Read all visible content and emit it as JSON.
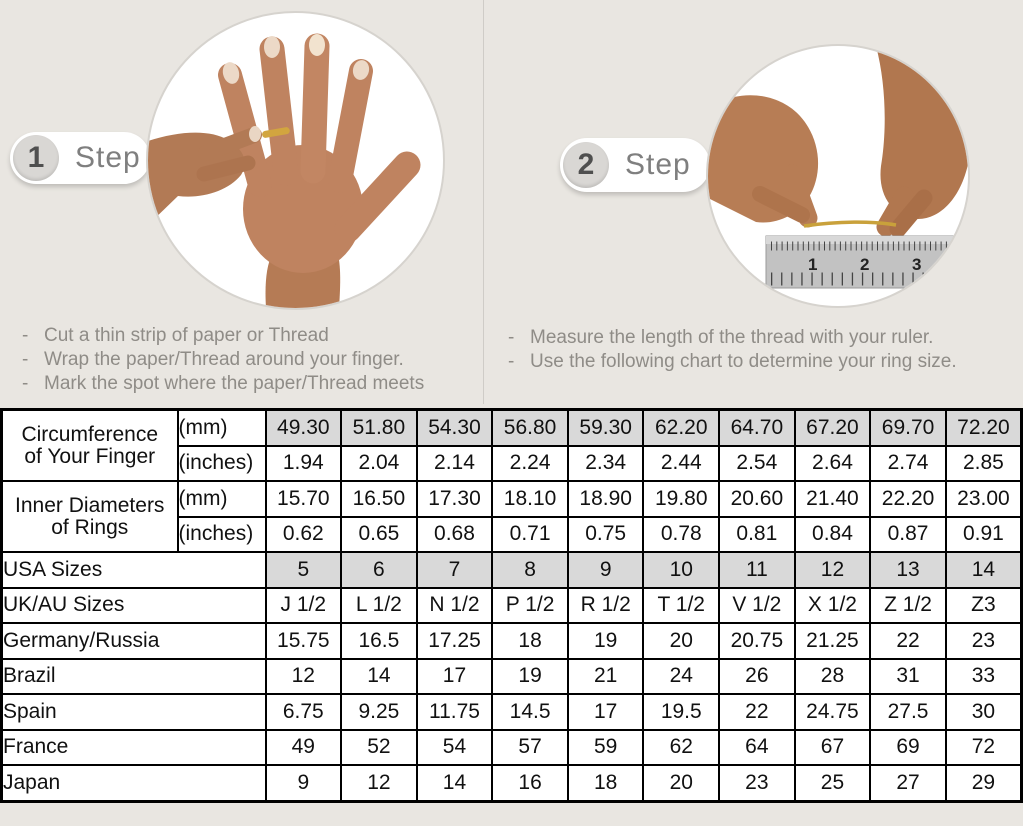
{
  "colors": {
    "background": "#e9e6e1",
    "divider": "#cfccc7",
    "table_shaded_cell": "#d9d9d9",
    "table_border": "#000000",
    "thread_gold": "#c9a13b"
  },
  "steps": [
    {
      "number": "1",
      "step_label": "Step",
      "image": "hand-with-thread-ring-photo",
      "instructions": [
        "Cut a thin strip of paper or Thread",
        "Wrap the paper/Thread around your finger.",
        "Mark the spot where the paper/Thread meets"
      ]
    },
    {
      "number": "2",
      "step_label": "Step",
      "image": "hands-measuring-thread-with-ruler-photo",
      "ruler_numbers": [
        "1",
        "2",
        "3"
      ],
      "instructions": [
        "Measure the length of the thread with your ruler.",
        "Use the following chart to determine your ring size."
      ]
    }
  ],
  "size_chart": {
    "row_groups": [
      {
        "label_lines": [
          "Circumference",
          "of Your Finger"
        ],
        "sub_rows": [
          {
            "unit": "(mm)",
            "shaded": true,
            "values": [
              "49.30",
              "51.80",
              "54.30",
              "56.80",
              "59.30",
              "62.20",
              "64.70",
              "67.20",
              "69.70",
              "72.20"
            ]
          },
          {
            "unit": "(inches)",
            "shaded": false,
            "values": [
              "1.94",
              "2.04",
              "2.14",
              "2.24",
              "2.34",
              "2.44",
              "2.54",
              "2.64",
              "2.74",
              "2.85"
            ]
          }
        ]
      },
      {
        "label_lines": [
          "Inner Diameters",
          "of Rings"
        ],
        "sub_rows": [
          {
            "unit": "(mm)",
            "shaded": false,
            "values": [
              "15.70",
              "16.50",
              "17.30",
              "18.10",
              "18.90",
              "19.80",
              "20.60",
              "21.40",
              "22.20",
              "23.00"
            ]
          },
          {
            "unit": "(inches)",
            "shaded": false,
            "values": [
              "0.62",
              "0.65",
              "0.68",
              "0.71",
              "0.75",
              "0.78",
              "0.81",
              "0.84",
              "0.87",
              "0.91"
            ]
          }
        ]
      }
    ],
    "simple_rows": [
      {
        "label": "USA Sizes",
        "shaded": true,
        "values": [
          "5",
          "6",
          "7",
          "8",
          "9",
          "10",
          "11",
          "12",
          "13",
          "14"
        ]
      },
      {
        "label": "UK/AU Sizes",
        "shaded": false,
        "values": [
          "J 1/2",
          "L 1/2",
          "N 1/2",
          "P 1/2",
          "R 1/2",
          "T 1/2",
          "V 1/2",
          "X 1/2",
          "Z 1/2",
          "Z3"
        ]
      },
      {
        "label": "Germany/Russia",
        "shaded": false,
        "values": [
          "15.75",
          "16.5",
          "17.25",
          "18",
          "19",
          "20",
          "20.75",
          "21.25",
          "22",
          "23"
        ]
      },
      {
        "label": "Brazil",
        "shaded": false,
        "values": [
          "12",
          "14",
          "17",
          "19",
          "21",
          "24",
          "26",
          "28",
          "31",
          "33"
        ]
      },
      {
        "label": "Spain",
        "shaded": false,
        "values": [
          "6.75",
          "9.25",
          "11.75",
          "14.5",
          "17",
          "19.5",
          "22",
          "24.75",
          "27.5",
          "30"
        ]
      },
      {
        "label": "France",
        "shaded": false,
        "values": [
          "49",
          "52",
          "54",
          "57",
          "59",
          "62",
          "64",
          "67",
          "69",
          "72"
        ]
      },
      {
        "label": "Japan",
        "shaded": false,
        "values": [
          "9",
          "12",
          "14",
          "16",
          "18",
          "20",
          "23",
          "25",
          "27",
          "29"
        ]
      }
    ]
  }
}
